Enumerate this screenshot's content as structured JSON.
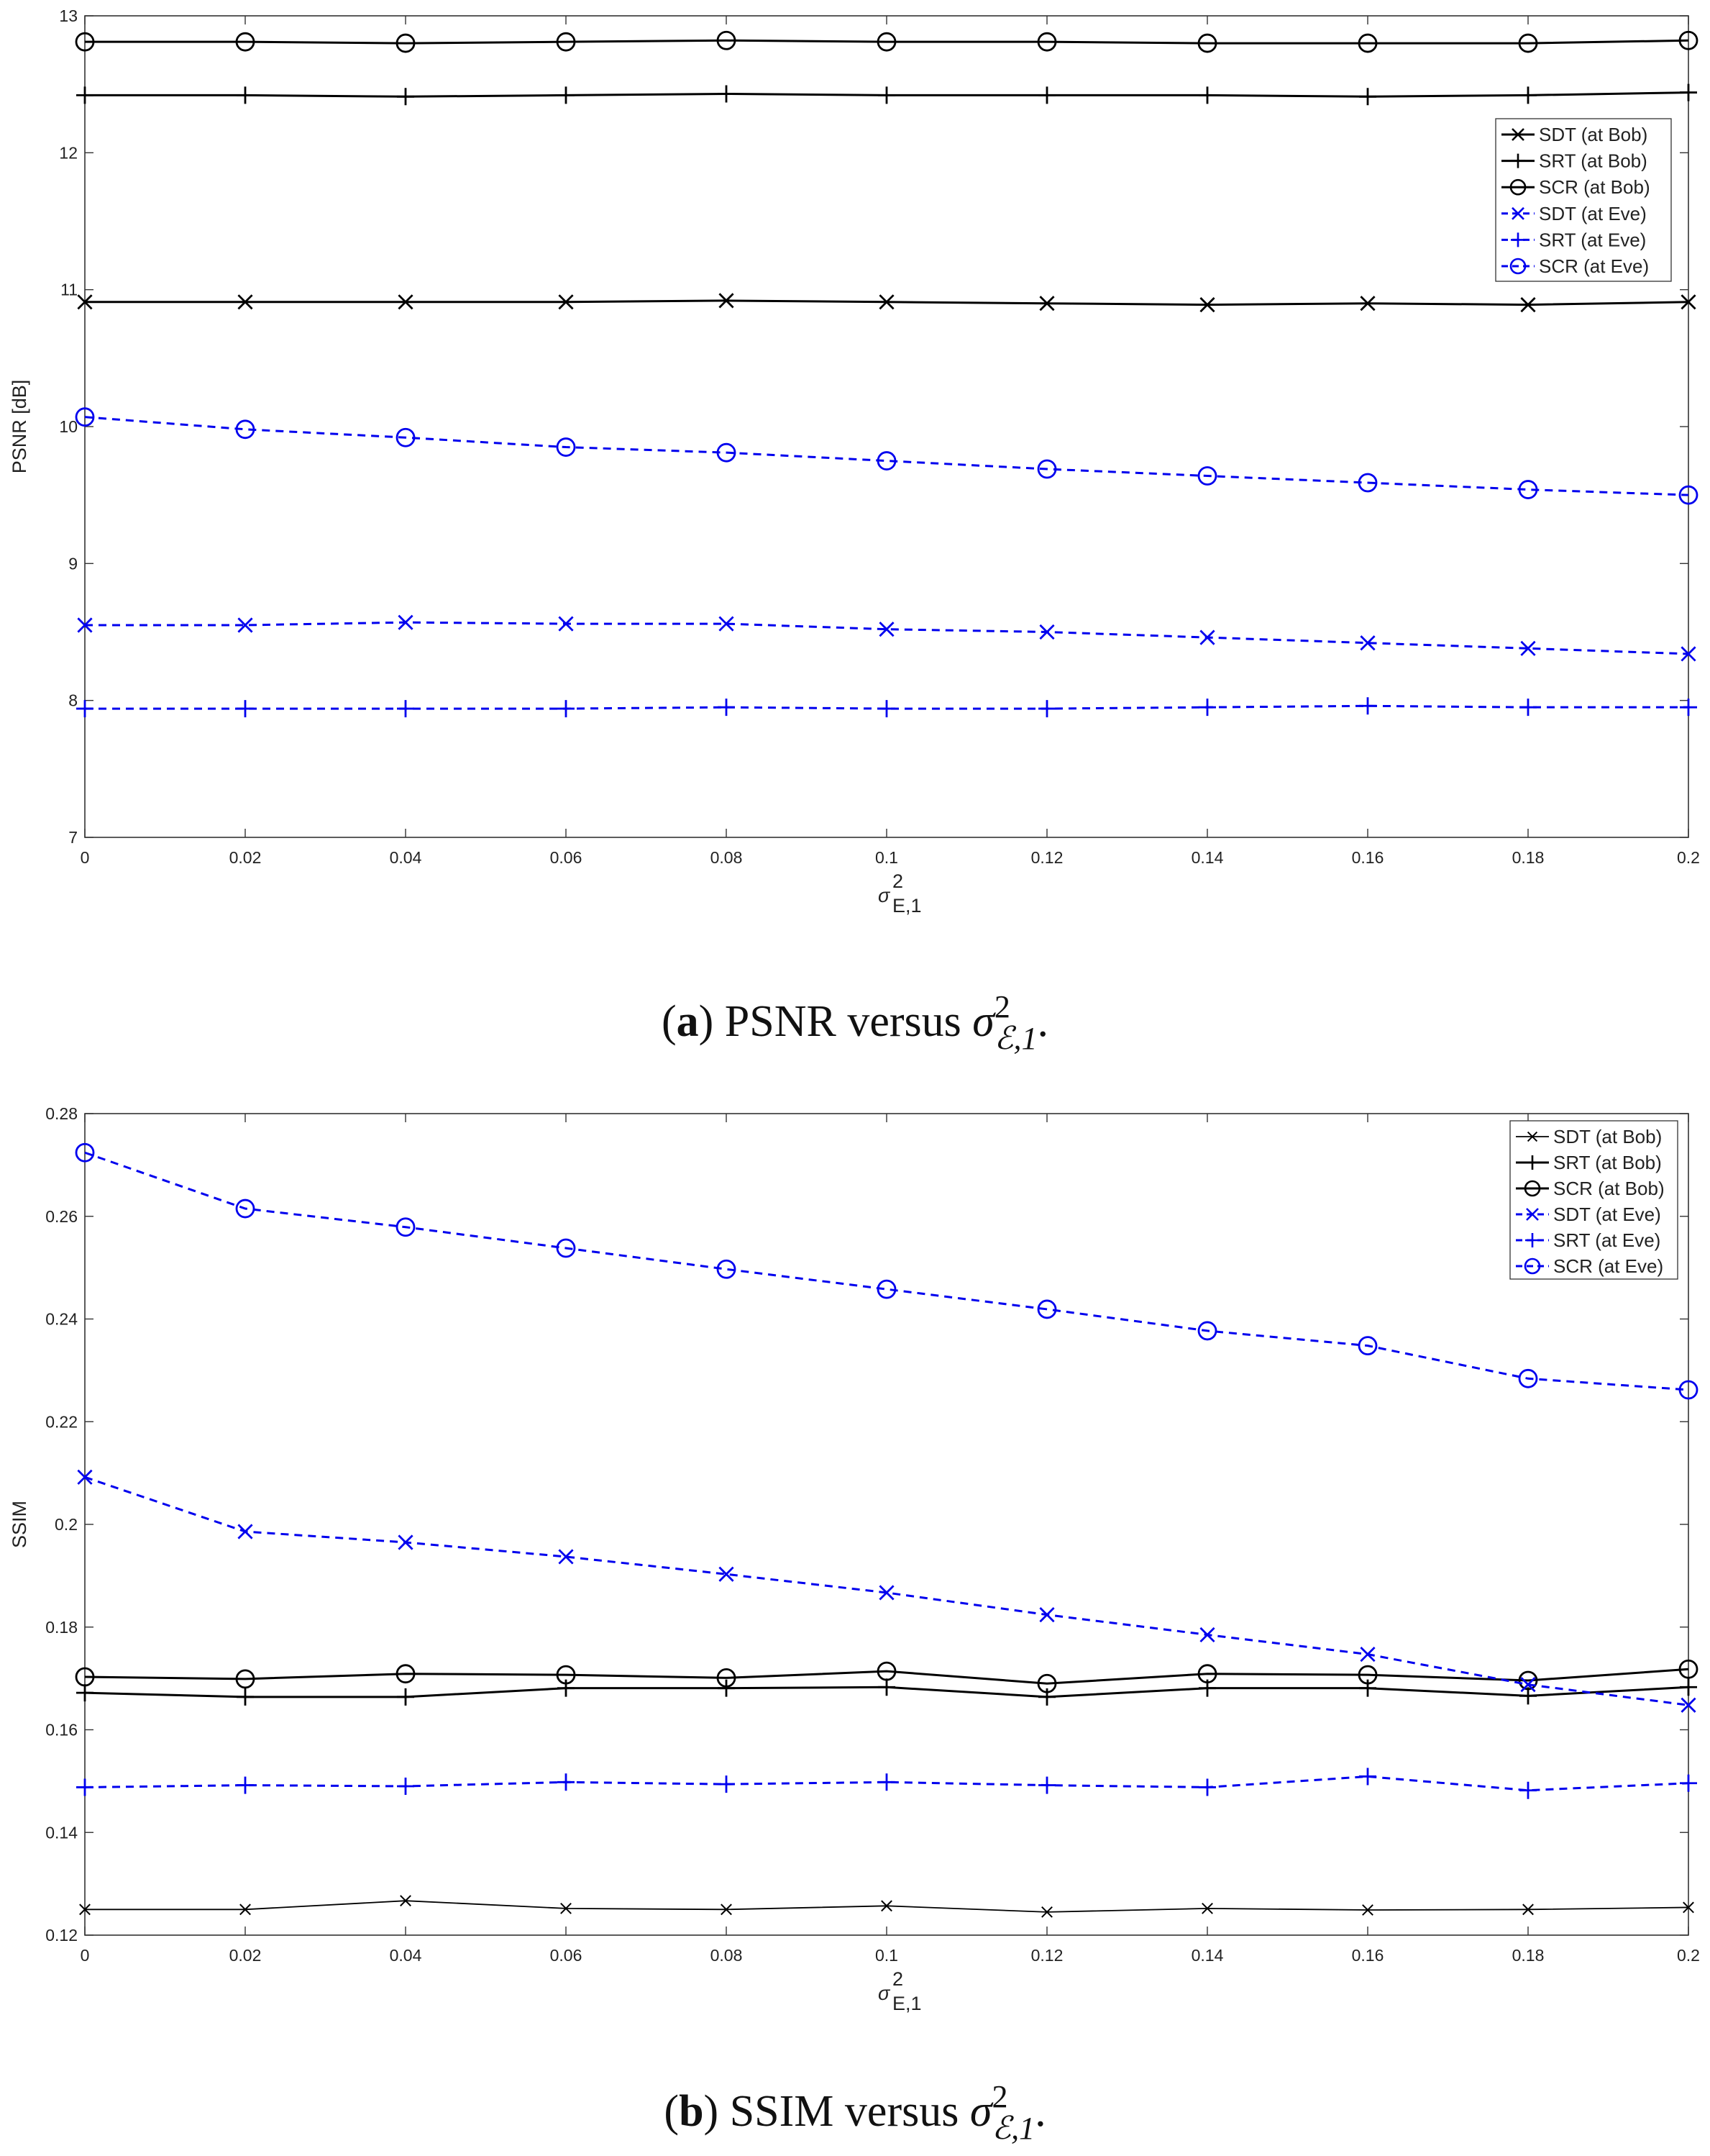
{
  "chart_data": [
    {
      "type": "line",
      "caption": {
        "letter": "a",
        "text": ") PSNR versus ",
        "symbol": "σ",
        "sup": "2",
        "sub": "ℰ,1",
        "end": "."
      },
      "xlabel": "σ",
      "xlabel_sup": "2",
      "xlabel_sub": "E,1",
      "ylabel": "PSNR [dB]",
      "xlim": [
        0,
        0.2
      ],
      "ylim": [
        7,
        13
      ],
      "x_ticks": [
        0,
        0.02,
        0.04,
        0.06,
        0.08,
        0.1,
        0.12,
        0.14,
        0.16,
        0.18,
        0.2
      ],
      "x_tick_labels": [
        "0",
        "0.02",
        "0.04",
        "0.06",
        "0.08",
        "0.1",
        "0.12",
        "0.14",
        "0.16",
        "0.18",
        "0.2"
      ],
      "y_ticks": [
        7,
        8,
        9,
        10,
        11,
        12,
        13
      ],
      "y_tick_labels": [
        "7",
        "8",
        "9",
        "10",
        "11",
        "12",
        "13"
      ],
      "legend_position": "top-right",
      "x": [
        0,
        0.02,
        0.04,
        0.06,
        0.08,
        0.1,
        0.12,
        0.14,
        0.16,
        0.18,
        0.2
      ],
      "series": [
        {
          "name": "SDT (at Bob)",
          "color": "#000000",
          "dash": false,
          "marker": "x",
          "values": [
            10.91,
            10.91,
            10.91,
            10.91,
            10.92,
            10.91,
            10.9,
            10.89,
            10.9,
            10.89,
            10.91
          ]
        },
        {
          "name": "SRT (at Bob)",
          "color": "#000000",
          "dash": false,
          "marker": "plus",
          "values": [
            12.42,
            12.42,
            12.41,
            12.42,
            12.43,
            12.42,
            12.42,
            12.42,
            12.41,
            12.42,
            12.44
          ]
        },
        {
          "name": "SCR (at Bob)",
          "color": "#000000",
          "dash": false,
          "marker": "circle",
          "values": [
            12.81,
            12.81,
            12.8,
            12.81,
            12.82,
            12.81,
            12.81,
            12.8,
            12.8,
            12.8,
            12.82
          ]
        },
        {
          "name": "SDT (at Eve)",
          "color": "#0000ee",
          "dash": true,
          "marker": "x",
          "values": [
            8.55,
            8.55,
            8.57,
            8.56,
            8.56,
            8.52,
            8.5,
            8.46,
            8.42,
            8.38,
            8.34
          ]
        },
        {
          "name": "SRT (at Eve)",
          "color": "#0000ee",
          "dash": true,
          "marker": "plus",
          "values": [
            7.94,
            7.94,
            7.94,
            7.94,
            7.95,
            7.94,
            7.94,
            7.95,
            7.96,
            7.95,
            7.95
          ]
        },
        {
          "name": "SCR (at Eve)",
          "color": "#0000ee",
          "dash": true,
          "marker": "circle",
          "values": [
            10.07,
            9.98,
            9.92,
            9.85,
            9.81,
            9.75,
            9.69,
            9.64,
            9.59,
            9.54,
            9.5
          ]
        }
      ]
    },
    {
      "type": "line",
      "caption": {
        "letter": "b",
        "text": ") SSIM versus ",
        "symbol": "σ",
        "sup": "2",
        "sub": "ℰ,1",
        "end": "."
      },
      "xlabel": "σ",
      "xlabel_sup": "2",
      "xlabel_sub": "E,1",
      "ylabel": "SSIM",
      "xlim": [
        0,
        0.2
      ],
      "ylim": [
        0.12,
        0.28
      ],
      "x_ticks": [
        0,
        0.02,
        0.04,
        0.06,
        0.08,
        0.1,
        0.12,
        0.14,
        0.16,
        0.18,
        0.2
      ],
      "x_tick_labels": [
        "0",
        "0.02",
        "0.04",
        "0.06",
        "0.08",
        "0.1",
        "0.12",
        "0.14",
        "0.16",
        "0.18",
        "0.2"
      ],
      "y_ticks": [
        0.12,
        0.14,
        0.16,
        0.18,
        0.2,
        0.22,
        0.24,
        0.26,
        0.28
      ],
      "y_tick_labels": [
        "0.12",
        "0.14",
        "0.16",
        "0.18",
        "0.2",
        "0.22",
        "0.24",
        "0.26",
        "0.28"
      ],
      "legend_position": "top-right",
      "x": [
        0,
        0.02,
        0.04,
        0.06,
        0.08,
        0.1,
        0.12,
        0.14,
        0.16,
        0.18,
        0.2
      ],
      "series": [
        {
          "name": "SDT (at Bob)",
          "color": "#000000",
          "dash": false,
          "marker": "x",
          "thin": true,
          "values": [
            0.125,
            0.125,
            0.1267,
            0.1252,
            0.125,
            0.1257,
            0.1245,
            0.1252,
            0.1249,
            0.125,
            0.1254
          ]
        },
        {
          "name": "SRT (at Bob)",
          "color": "#000000",
          "dash": false,
          "marker": "plus",
          "values": [
            0.1672,
            0.1664,
            0.1664,
            0.1681,
            0.1681,
            0.1683,
            0.1664,
            0.1681,
            0.1681,
            0.1666,
            0.1683
          ]
        },
        {
          "name": "SCR (at Bob)",
          "color": "#000000",
          "dash": false,
          "marker": "circle",
          "values": [
            0.1703,
            0.1699,
            0.1709,
            0.1707,
            0.1701,
            0.1714,
            0.169,
            0.1709,
            0.1707,
            0.1696,
            0.1718
          ]
        },
        {
          "name": "SDT (at Eve)",
          "color": "#0000ee",
          "dash": true,
          "marker": "x",
          "values": [
            0.2092,
            0.1986,
            0.1965,
            0.1937,
            0.1903,
            0.1867,
            0.1824,
            0.1785,
            0.1747,
            0.1688,
            0.1648
          ]
        },
        {
          "name": "SRT (at Eve)",
          "color": "#0000ee",
          "dash": true,
          "marker": "plus",
          "values": [
            0.1488,
            0.1492,
            0.149,
            0.1498,
            0.1494,
            0.1498,
            0.1492,
            0.1488,
            0.1509,
            0.1482,
            0.1496
          ]
        },
        {
          "name": "SCR (at Eve)",
          "color": "#0000ee",
          "dash": true,
          "marker": "circle",
          "values": [
            0.2724,
            0.2615,
            0.2579,
            0.2538,
            0.2497,
            0.2458,
            0.2419,
            0.2377,
            0.2348,
            0.2284,
            0.2262
          ]
        }
      ]
    }
  ]
}
